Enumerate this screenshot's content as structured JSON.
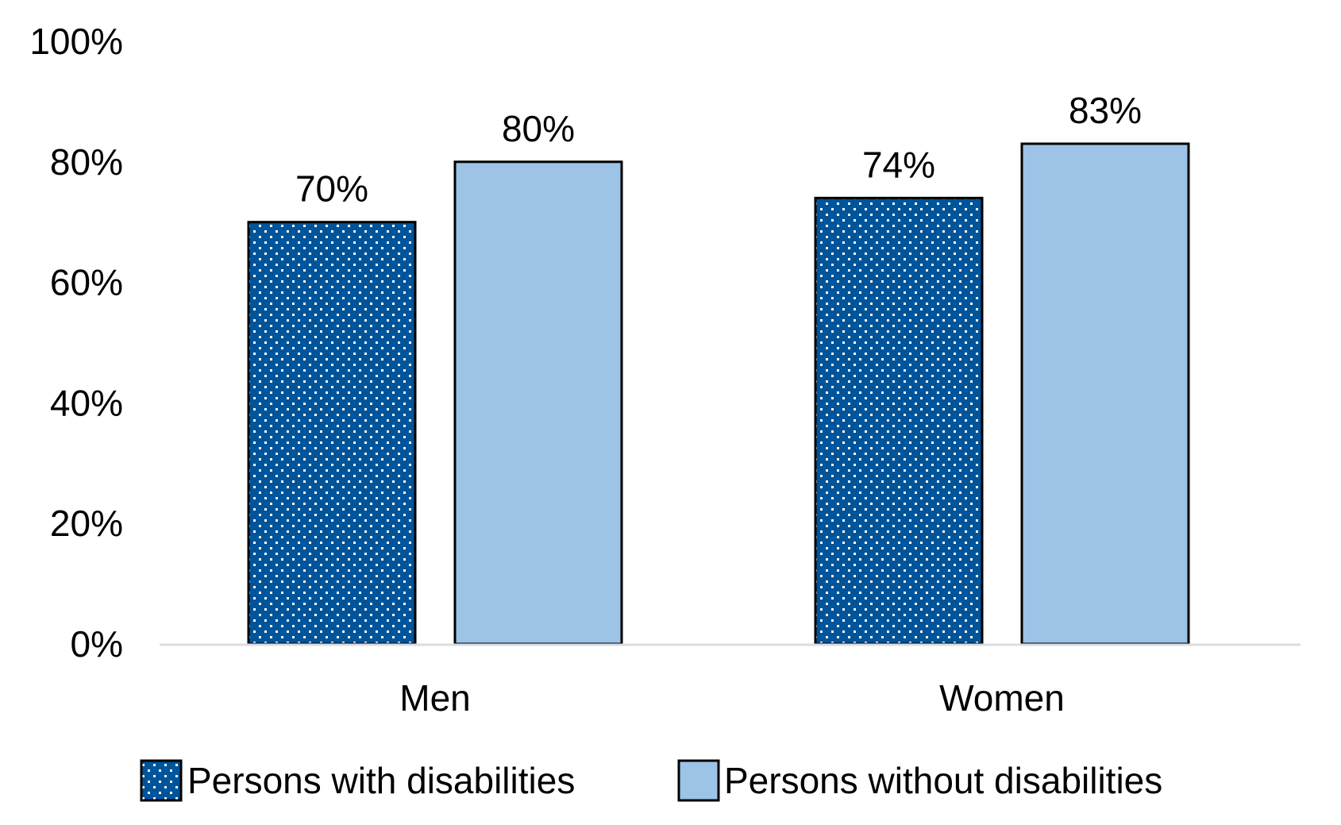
{
  "chart_data": {
    "type": "bar",
    "title": "",
    "xlabel": "",
    "ylabel": "",
    "categories": [
      "Men",
      "Women"
    ],
    "series": [
      {
        "name": "Persons with disabilities",
        "values": [
          70,
          74
        ],
        "data_labels": [
          "70%",
          "74%"
        ],
        "color": "#005499",
        "pattern": "white-dots"
      },
      {
        "name": "Persons without disabilities",
        "values": [
          80,
          83
        ],
        "data_labels": [
          "80%",
          "83%"
        ],
        "color": "#9DC3E6",
        "pattern": "solid"
      }
    ],
    "ylim": [
      0,
      100
    ],
    "yticks": [
      0,
      20,
      40,
      60,
      80,
      100
    ],
    "ytick_labels": [
      "0%",
      "20%",
      "40%",
      "60%",
      "80%",
      "100%"
    ],
    "grid": false,
    "legend_position": "bottom",
    "bar_outline_color": "#000000",
    "axis_line_color": "#D9DCE3"
  }
}
